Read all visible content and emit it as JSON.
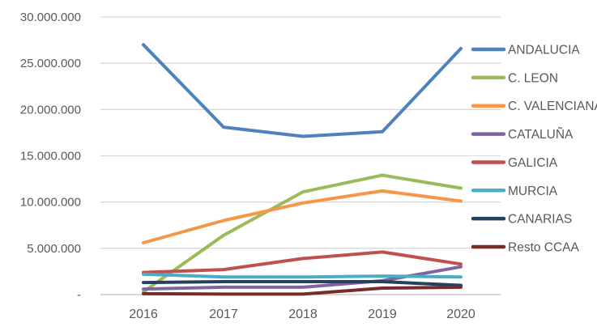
{
  "chart_data": {
    "type": "line",
    "title": "",
    "xlabel": "",
    "ylabel": "",
    "x_labels": [
      "2016",
      "2017",
      "2018",
      "2019",
      "2020"
    ],
    "y_ticks": [
      "30.000.000",
      "25.000.000",
      "20.000.000",
      "15.000.000",
      "10.000.000",
      "5.000.000",
      "-"
    ],
    "ylim": [
      0,
      30000000
    ],
    "grid": true,
    "legend_position": "right",
    "series": [
      {
        "name": "ANDALUCIA",
        "color": "#4F81BD",
        "values": [
          27000000,
          18100000,
          17100000,
          17600000,
          26600000
        ]
      },
      {
        "name": "C. LEON",
        "color": "#9BBB59",
        "values": [
          300000,
          6400000,
          11100000,
          12900000,
          11500000
        ]
      },
      {
        "name": "C. VALENCIANA",
        "color": "#F79646",
        "values": [
          5600000,
          8000000,
          9900000,
          11200000,
          10100000
        ]
      },
      {
        "name": "CATALUÑA",
        "color": "#8064A2",
        "values": [
          600000,
          800000,
          800000,
          1500000,
          3000000
        ]
      },
      {
        "name": "GALICIA",
        "color": "#C0504D",
        "values": [
          2400000,
          2700000,
          3900000,
          4600000,
          3300000
        ]
      },
      {
        "name": "MURCIA",
        "color": "#4BACC6",
        "values": [
          2200000,
          1900000,
          1900000,
          2000000,
          1900000
        ]
      },
      {
        "name": "CANARIAS",
        "color": "#254061",
        "values": [
          1300000,
          1400000,
          1400000,
          1400000,
          1000000
        ]
      },
      {
        "name": "Resto CCAA",
        "color": "#772C2A",
        "values": [
          100000,
          50000,
          50000,
          700000,
          800000
        ]
      }
    ],
    "colors": {
      "gridline": "#D9D9D9",
      "axis_line": "#BFBFBF",
      "tick_text": "#595959"
    }
  }
}
